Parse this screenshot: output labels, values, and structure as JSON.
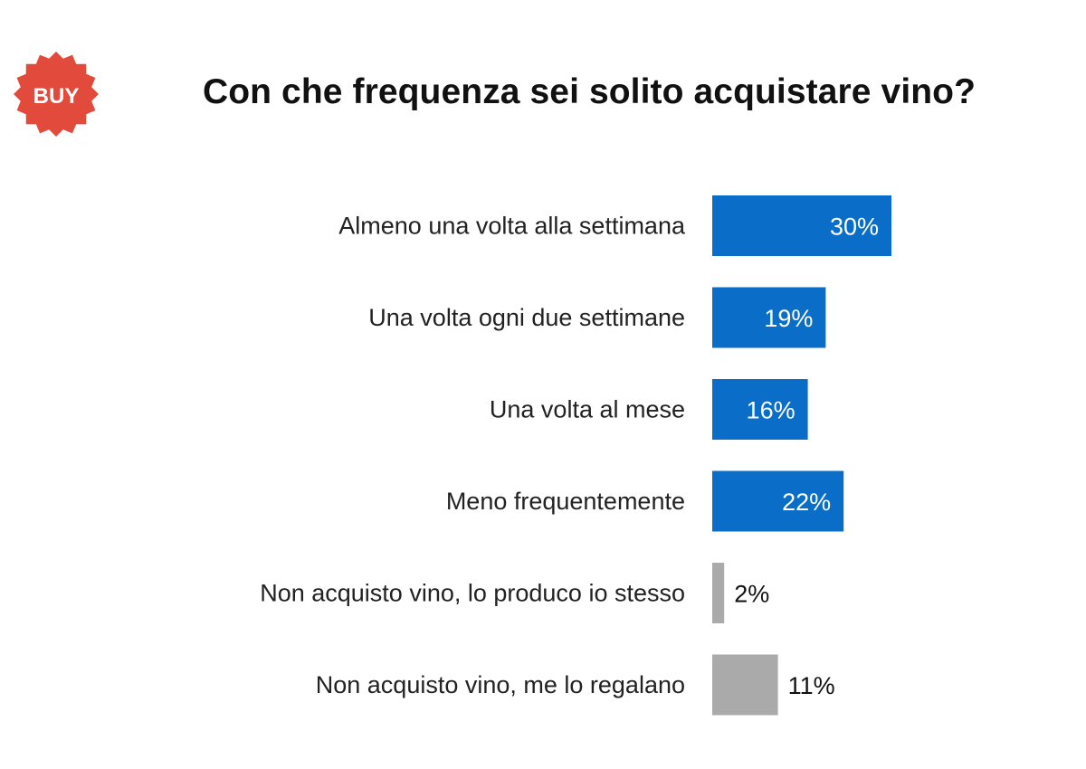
{
  "badge": {
    "text": "BUY",
    "color": "#e24a3c",
    "icon": "starburst-badge-icon"
  },
  "chart_data": {
    "type": "bar",
    "orientation": "horizontal",
    "title": "Con che frequenza sei solito acquistare vino?",
    "categories": [
      "Almeno una volta alla settimana",
      "Una volta ogni due settimane",
      "Una volta al mese",
      "Meno frequentemente",
      "Non acquisto vino, lo produco io stesso",
      "Non acquisto vino, me lo regalano"
    ],
    "values": [
      30,
      19,
      16,
      22,
      2,
      11
    ],
    "value_labels": [
      "30%",
      "19%",
      "16%",
      "22%",
      "2%",
      "11%"
    ],
    "unit": "%",
    "bar_colors": [
      "#0a6ec8",
      "#0a6ec8",
      "#0a6ec8",
      "#0a6ec8",
      "#aaaaaa",
      "#aaaaaa"
    ],
    "xlim": [
      0,
      100
    ],
    "grid": false,
    "legend": "none"
  }
}
